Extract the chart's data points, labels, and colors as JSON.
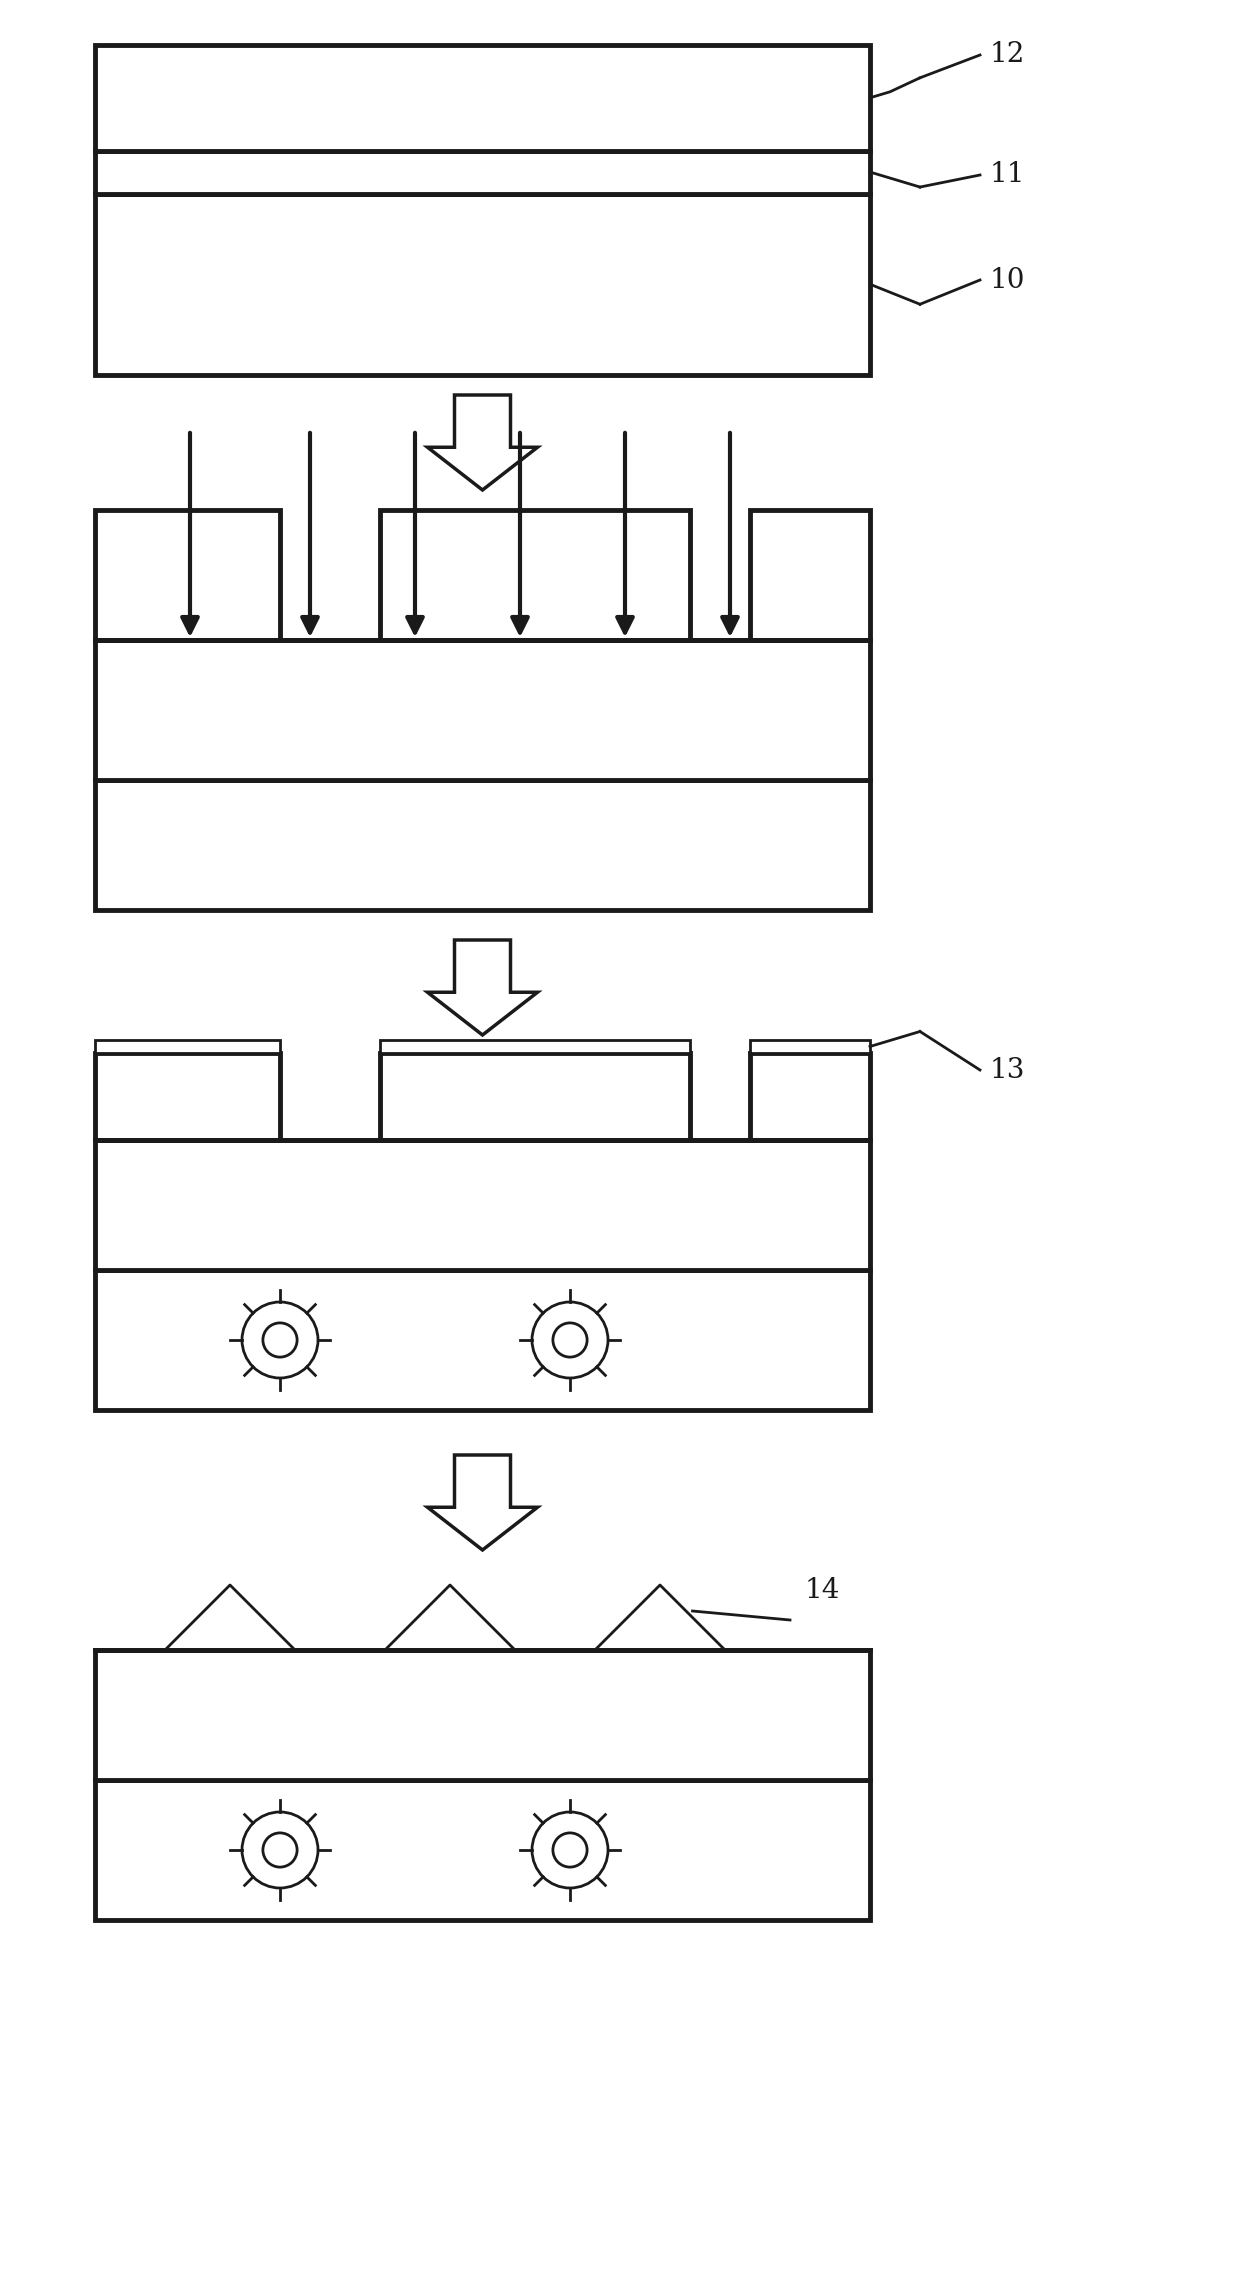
{
  "bg_color": "#ffffff",
  "line_color": "#1a1a1a",
  "lw_thick": 3.5,
  "lw_thin": 2.0,
  "fig_w": 12.4,
  "fig_h": 22.78,
  "label_12": "12",
  "label_11": "11",
  "label_10": "10",
  "label_13": "13",
  "label_14": "14",
  "label_fs": 20
}
